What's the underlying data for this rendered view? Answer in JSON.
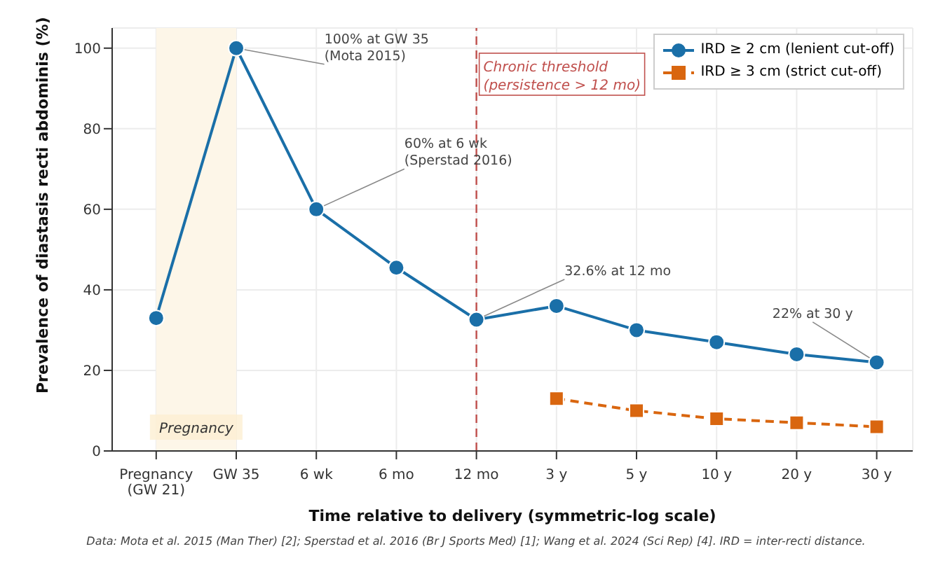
{
  "chart_data": {
    "type": "line",
    "xlabel": "Time relative to delivery (symmetric-log scale)",
    "ylabel": "Prevalence of diastasis recti abdominis (%)",
    "categories": [
      "Pregnancy (GW 21)",
      "GW 35",
      "6 wk",
      "6 mo",
      "12 mo",
      "3 y",
      "5 y",
      "10 y",
      "20 y",
      "30 y"
    ],
    "series": [
      {
        "name": "IRD ≥ 2 cm (lenient cut-off)",
        "color": "#1a6fa8",
        "marker": "circle",
        "line_style": "solid",
        "values": [
          33,
          100,
          60,
          45.5,
          32.6,
          36,
          30,
          27,
          24,
          22
        ]
      },
      {
        "name": "IRD ≥ 3 cm (strict cut-off)",
        "color": "#d9660f",
        "marker": "square",
        "line_style": "dashed",
        "values": [
          null,
          null,
          null,
          null,
          null,
          13,
          10,
          8,
          7,
          6
        ]
      }
    ],
    "ylim": [
      0,
      105
    ],
    "yticks": [
      0,
      20,
      40,
      60,
      80,
      100
    ],
    "grid": true,
    "legend": "top right",
    "ref_lines": [
      {
        "axis": "x",
        "value": "12 mo",
        "label": "Chronic threshold (persistence > 12 mo)",
        "color": "#c0504d",
        "line_style": "dashed"
      }
    ],
    "bands": [
      {
        "axis": "x",
        "from": "Pregnancy (GW 21)",
        "to": "GW 35",
        "label": "Pregnancy",
        "color": "#fdf6e8"
      }
    ],
    "annotations": [
      {
        "text": "100% at GW 35 (Mota 2015)",
        "x": "GW 35",
        "y": 100
      },
      {
        "text": "60% at 6 wk (Sperstad 2016)",
        "x": "6 wk",
        "y": 60
      },
      {
        "text": "32.6% at 12 mo",
        "x": "12 mo",
        "y": 32.6
      },
      {
        "text": "22% at 30 y",
        "x": "30 y",
        "y": 22
      },
      "Data: Mota et al. 2015 (Man Ther) [2]; Sperstad et al. 2016 (Br J Sports Med) [1]; Wang et al. 2024 (Sci Rep) [4]. IRD = inter-recti distance."
    ]
  }
}
